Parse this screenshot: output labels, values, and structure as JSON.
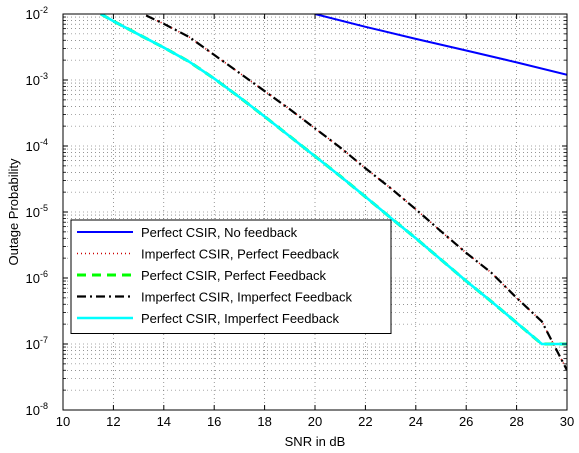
{
  "chart_data": {
    "type": "line",
    "title": "",
    "xlabel": "SNR in dB",
    "ylabel": "Outage Probability",
    "xlim": [
      10,
      30
    ],
    "ylim": [
      1e-08,
      0.01
    ],
    "yscale": "log",
    "grid": true,
    "legend_position": "lower-left",
    "x_ticks": [
      10,
      12,
      14,
      16,
      18,
      20,
      22,
      24,
      26,
      28,
      30
    ],
    "x_tick_labels": [
      "10",
      "12",
      "14",
      "16",
      "18",
      "20",
      "22",
      "24",
      "26",
      "28",
      "30"
    ],
    "y_tick_exponents": [
      -8,
      -7,
      -6,
      -5,
      -4,
      -3,
      -2
    ],
    "y_tick_base": "10",
    "series": [
      {
        "name": "Perfect CSIR, No feedback",
        "color": "#0000ff",
        "style": "solid",
        "x": [
          20,
          22,
          24,
          26,
          28,
          30
        ],
        "y": [
          0.01,
          0.0064,
          0.0042,
          0.0028,
          0.00185,
          0.0012
        ]
      },
      {
        "name": "Imperfect CSIR, Perfect Feedback",
        "color": "#cc0000",
        "style": "dotted",
        "x": [
          13.3,
          14,
          15,
          16,
          17,
          18,
          19,
          20,
          21,
          22,
          23,
          24,
          25,
          26,
          27,
          28,
          29,
          30
        ],
        "y": [
          0.0095,
          0.0071,
          0.0045,
          0.0024,
          0.00128,
          0.00068,
          0.00036,
          0.000185,
          9.5e-05,
          4.6e-05,
          2.3e-05,
          1.1e-05,
          5.1e-06,
          2.4e-06,
          1.2e-06,
          5e-07,
          2.2e-07,
          4e-08
        ]
      },
      {
        "name": "Perfect CSIR, Perfect Feedback",
        "color": "#00ff00",
        "style": "dashed",
        "x": [
          11.5,
          12,
          13,
          14,
          15,
          16,
          17,
          18,
          19,
          20,
          21,
          22,
          23,
          24,
          25,
          26,
          27,
          28,
          29,
          30
        ],
        "y": [
          0.01,
          0.0078,
          0.0049,
          0.0031,
          0.0019,
          0.00105,
          0.00055,
          0.00028,
          0.00014,
          7e-05,
          3.5e-05,
          1.7e-05,
          8.2e-06,
          4e-06,
          1.9e-06,
          9e-07,
          4.4e-07,
          2.1e-07,
          1e-07,
          1e-07
        ]
      },
      {
        "name": "Imperfect CSIR, Imperfect Feedback",
        "color": "#000000",
        "style": "dashdot",
        "x": [
          13.3,
          14,
          15,
          16,
          17,
          18,
          19,
          20,
          21,
          22,
          23,
          24,
          25,
          26,
          27,
          28,
          29,
          30
        ],
        "y": [
          0.0095,
          0.0071,
          0.0045,
          0.0024,
          0.00128,
          0.00068,
          0.00036,
          0.000185,
          9.5e-05,
          4.6e-05,
          2.3e-05,
          1.1e-05,
          5.1e-06,
          2.4e-06,
          1.2e-06,
          5e-07,
          2.2e-07,
          4e-08
        ]
      },
      {
        "name": "Perfect CSIR, Imperfect Feedback",
        "color": "#00ffff",
        "style": "solid",
        "x": [
          11.5,
          12,
          13,
          14,
          15,
          16,
          17,
          18,
          19,
          20,
          21,
          22,
          23,
          24,
          25,
          26,
          27,
          28,
          29,
          30
        ],
        "y": [
          0.01,
          0.0078,
          0.0049,
          0.0031,
          0.0019,
          0.00105,
          0.00055,
          0.00028,
          0.00014,
          7e-05,
          3.5e-05,
          1.7e-05,
          8.2e-06,
          4e-06,
          1.9e-06,
          9e-07,
          4.4e-07,
          2.1e-07,
          1e-07,
          1e-07
        ]
      }
    ]
  }
}
